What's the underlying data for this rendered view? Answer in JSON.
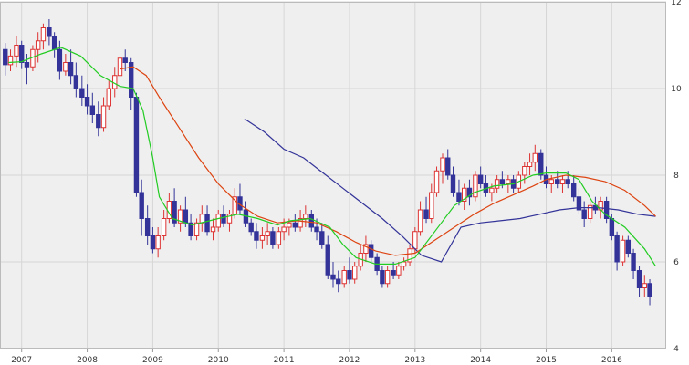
{
  "chart_data": {
    "type": "candlestick",
    "xlabel": "",
    "ylabel": "",
    "x_range": [
      2006.67,
      2016.83
    ],
    "ylim": [
      4,
      12
    ],
    "x_ticks": [
      {
        "label": "2007",
        "x": 2007.0
      },
      {
        "label": "2008",
        "x": 2008.0
      },
      {
        "label": "2009",
        "x": 2009.0
      },
      {
        "label": "2010",
        "x": 2010.0
      },
      {
        "label": "2011",
        "x": 2011.0
      },
      {
        "label": "2012",
        "x": 2012.0
      },
      {
        "label": "2013",
        "x": 2013.0
      },
      {
        "label": "2014",
        "x": 2014.0
      },
      {
        "label": "2015",
        "x": 2015.0
      },
      {
        "label": "2016",
        "x": 2016.0
      }
    ],
    "y_ticks": [
      4,
      6,
      8,
      10,
      12
    ],
    "grid": true,
    "colors": {
      "up_candle": "#dd3333",
      "down_candle": "#333399",
      "ma_short": "#22cc22",
      "ma_medium": "#dd4411",
      "ma_long": "#333399",
      "plot_bg": "#efefef",
      "grid": "#d6d6d6"
    },
    "ma_short": [
      [
        2006.8,
        10.6
      ],
      [
        2007.0,
        10.62
      ],
      [
        2007.3,
        10.8
      ],
      [
        2007.6,
        10.95
      ],
      [
        2007.9,
        10.75
      ],
      [
        2008.2,
        10.3
      ],
      [
        2008.5,
        10.05
      ],
      [
        2008.7,
        10.0
      ],
      [
        2008.85,
        9.5
      ],
      [
        2009.0,
        8.4
      ],
      [
        2009.1,
        7.5
      ],
      [
        2009.3,
        7.0
      ],
      [
        2009.6,
        6.85
      ],
      [
        2010.0,
        7.0
      ],
      [
        2010.3,
        7.1
      ],
      [
        2010.6,
        7.0
      ],
      [
        2010.9,
        6.85
      ],
      [
        2011.1,
        6.95
      ],
      [
        2011.4,
        7.0
      ],
      [
        2011.7,
        6.8
      ],
      [
        2011.9,
        6.4
      ],
      [
        2012.1,
        6.1
      ],
      [
        2012.4,
        5.95
      ],
      [
        2012.7,
        5.95
      ],
      [
        2013.0,
        6.1
      ],
      [
        2013.3,
        6.7
      ],
      [
        2013.6,
        7.3
      ],
      [
        2013.9,
        7.6
      ],
      [
        2014.2,
        7.75
      ],
      [
        2014.5,
        7.8
      ],
      [
        2014.8,
        8.0
      ],
      [
        2015.0,
        8.05
      ],
      [
        2015.3,
        8.05
      ],
      [
        2015.5,
        7.9
      ],
      [
        2015.7,
        7.4
      ],
      [
        2015.9,
        7.1
      ],
      [
        2016.2,
        6.8
      ],
      [
        2016.5,
        6.3
      ],
      [
        2016.67,
        5.9
      ]
    ],
    "ma_medium": [
      [
        2008.5,
        10.45
      ],
      [
        2008.7,
        10.5
      ],
      [
        2008.9,
        10.3
      ],
      [
        2009.1,
        9.8
      ],
      [
        2009.4,
        9.1
      ],
      [
        2009.7,
        8.4
      ],
      [
        2010.0,
        7.8
      ],
      [
        2010.3,
        7.35
      ],
      [
        2010.6,
        7.05
      ],
      [
        2010.9,
        6.9
      ],
      [
        2011.2,
        6.95
      ],
      [
        2011.5,
        6.9
      ],
      [
        2011.8,
        6.7
      ],
      [
        2012.1,
        6.45
      ],
      [
        2012.4,
        6.25
      ],
      [
        2012.7,
        6.15
      ],
      [
        2013.0,
        6.2
      ],
      [
        2013.3,
        6.5
      ],
      [
        2013.6,
        6.8
      ],
      [
        2013.9,
        7.1
      ],
      [
        2014.2,
        7.35
      ],
      [
        2014.5,
        7.55
      ],
      [
        2014.8,
        7.75
      ],
      [
        2015.0,
        7.9
      ],
      [
        2015.3,
        8.0
      ],
      [
        2015.6,
        7.95
      ],
      [
        2015.9,
        7.85
      ],
      [
        2016.2,
        7.65
      ],
      [
        2016.5,
        7.3
      ],
      [
        2016.67,
        7.05
      ]
    ],
    "ma_long": [
      [
        2010.4,
        9.3
      ],
      [
        2010.7,
        9.0
      ],
      [
        2011.0,
        8.6
      ],
      [
        2011.3,
        8.4
      ],
      [
        2011.6,
        8.05
      ],
      [
        2011.9,
        7.7
      ],
      [
        2012.2,
        7.35
      ],
      [
        2012.5,
        7.0
      ],
      [
        2012.8,
        6.6
      ],
      [
        2013.1,
        6.15
      ],
      [
        2013.4,
        6.0
      ],
      [
        2013.7,
        6.8
      ],
      [
        2014.0,
        6.9
      ],
      [
        2014.3,
        6.95
      ],
      [
        2014.6,
        7.0
      ],
      [
        2014.9,
        7.1
      ],
      [
        2015.2,
        7.2
      ],
      [
        2015.5,
        7.25
      ],
      [
        2015.8,
        7.25
      ],
      [
        2016.1,
        7.2
      ],
      [
        2016.4,
        7.1
      ],
      [
        2016.67,
        7.05
      ]
    ],
    "candles": [
      [
        2006.75,
        10.9,
        11.05,
        10.3,
        10.55
      ],
      [
        2006.83,
        10.55,
        10.9,
        10.4,
        10.75
      ],
      [
        2006.92,
        10.75,
        11.2,
        10.5,
        11.0
      ],
      [
        2007.0,
        11.0,
        11.1,
        10.45,
        10.6
      ],
      [
        2007.08,
        10.6,
        10.8,
        10.1,
        10.5
      ],
      [
        2007.17,
        10.5,
        11.0,
        10.4,
        10.9
      ],
      [
        2007.25,
        10.9,
        11.3,
        10.6,
        11.1
      ],
      [
        2007.33,
        11.1,
        11.5,
        10.9,
        11.4
      ],
      [
        2007.42,
        11.4,
        11.6,
        11.0,
        11.2
      ],
      [
        2007.5,
        11.2,
        11.3,
        10.7,
        10.9
      ],
      [
        2007.58,
        10.9,
        11.1,
        10.2,
        10.4
      ],
      [
        2007.67,
        10.4,
        10.8,
        10.3,
        10.6
      ],
      [
        2007.75,
        10.6,
        10.9,
        10.1,
        10.3
      ],
      [
        2007.83,
        10.3,
        10.6,
        9.8,
        10.0
      ],
      [
        2007.92,
        10.0,
        10.3,
        9.6,
        9.8
      ],
      [
        2008.0,
        9.8,
        10.1,
        9.4,
        9.6
      ],
      [
        2008.08,
        9.6,
        9.9,
        9.2,
        9.4
      ],
      [
        2008.17,
        9.4,
        9.7,
        8.9,
        9.1
      ],
      [
        2008.25,
        9.1,
        9.8,
        9.0,
        9.6
      ],
      [
        2008.33,
        9.6,
        10.2,
        9.5,
        10.0
      ],
      [
        2008.42,
        10.0,
        10.5,
        9.8,
        10.3
      ],
      [
        2008.5,
        10.3,
        10.8,
        10.2,
        10.7
      ],
      [
        2008.58,
        10.7,
        10.9,
        10.4,
        10.6
      ],
      [
        2008.67,
        10.6,
        10.7,
        9.5,
        9.8
      ],
      [
        2008.75,
        9.8,
        9.9,
        7.5,
        7.6
      ],
      [
        2008.83,
        7.6,
        7.9,
        6.6,
        7.0
      ],
      [
        2008.92,
        7.0,
        7.3,
        6.4,
        6.6
      ],
      [
        2009.0,
        6.6,
        6.8,
        6.2,
        6.3
      ],
      [
        2009.08,
        6.3,
        6.8,
        6.1,
        6.6
      ],
      [
        2009.17,
        6.6,
        7.2,
        6.5,
        7.0
      ],
      [
        2009.25,
        7.0,
        7.6,
        6.9,
        7.4
      ],
      [
        2009.33,
        7.4,
        7.7,
        6.8,
        6.9
      ],
      [
        2009.42,
        6.9,
        7.3,
        6.7,
        7.2
      ],
      [
        2009.5,
        7.2,
        7.5,
        6.8,
        6.9
      ],
      [
        2009.58,
        6.9,
        7.1,
        6.5,
        6.6
      ],
      [
        2009.67,
        6.6,
        7.0,
        6.5,
        6.9
      ],
      [
        2009.75,
        6.9,
        7.3,
        6.7,
        7.1
      ],
      [
        2009.83,
        7.1,
        7.3,
        6.6,
        6.7
      ],
      [
        2009.92,
        6.7,
        7.0,
        6.5,
        6.8
      ],
      [
        2010.0,
        6.8,
        7.2,
        6.7,
        7.1
      ],
      [
        2010.08,
        7.1,
        7.3,
        6.8,
        6.9
      ],
      [
        2010.17,
        6.9,
        7.2,
        6.7,
        7.1
      ],
      [
        2010.25,
        7.1,
        7.7,
        7.0,
        7.5
      ],
      [
        2010.33,
        7.5,
        7.8,
        7.1,
        7.2
      ],
      [
        2010.42,
        7.2,
        7.4,
        6.8,
        6.9
      ],
      [
        2010.5,
        6.9,
        7.0,
        6.6,
        6.7
      ],
      [
        2010.58,
        6.7,
        6.9,
        6.3,
        6.5
      ],
      [
        2010.67,
        6.5,
        6.8,
        6.3,
        6.6
      ],
      [
        2010.75,
        6.6,
        6.9,
        6.4,
        6.7
      ],
      [
        2010.83,
        6.7,
        6.8,
        6.3,
        6.4
      ],
      [
        2010.92,
        6.4,
        6.8,
        6.3,
        6.7
      ],
      [
        2011.0,
        6.7,
        7.0,
        6.5,
        6.8
      ],
      [
        2011.08,
        6.8,
        7.0,
        6.6,
        6.9
      ],
      [
        2011.17,
        6.9,
        7.1,
        6.7,
        6.8
      ],
      [
        2011.25,
        6.8,
        7.2,
        6.7,
        7.0
      ],
      [
        2011.33,
        7.0,
        7.3,
        6.8,
        7.1
      ],
      [
        2011.42,
        7.1,
        7.2,
        6.7,
        6.8
      ],
      [
        2011.5,
        6.8,
        7.0,
        6.5,
        6.7
      ],
      [
        2011.58,
        6.7,
        6.9,
        6.3,
        6.4
      ],
      [
        2011.67,
        6.4,
        6.6,
        5.6,
        5.7
      ],
      [
        2011.75,
        5.7,
        6.0,
        5.4,
        5.6
      ],
      [
        2011.83,
        5.6,
        5.8,
        5.3,
        5.5
      ],
      [
        2011.92,
        5.5,
        5.9,
        5.4,
        5.8
      ],
      [
        2012.0,
        5.8,
        6.1,
        5.5,
        5.6
      ],
      [
        2012.08,
        5.6,
        6.0,
        5.5,
        5.9
      ],
      [
        2012.17,
        5.9,
        6.4,
        5.8,
        6.2
      ],
      [
        2012.25,
        6.2,
        6.6,
        6.0,
        6.4
      ],
      [
        2012.33,
        6.4,
        6.5,
        6.0,
        6.1
      ],
      [
        2012.42,
        6.1,
        6.2,
        5.7,
        5.8
      ],
      [
        2012.5,
        5.8,
        5.9,
        5.4,
        5.5
      ],
      [
        2012.58,
        5.5,
        5.9,
        5.4,
        5.8
      ],
      [
        2012.67,
        5.8,
        6.0,
        5.6,
        5.7
      ],
      [
        2012.75,
        5.7,
        6.0,
        5.6,
        5.9
      ],
      [
        2012.83,
        5.9,
        6.1,
        5.8,
        6.0
      ],
      [
        2012.92,
        6.0,
        6.4,
        5.9,
        6.3
      ],
      [
        2013.0,
        6.3,
        6.8,
        6.2,
        6.7
      ],
      [
        2013.08,
        6.7,
        7.4,
        6.6,
        7.2
      ],
      [
        2013.17,
        7.2,
        7.5,
        6.9,
        7.0
      ],
      [
        2013.25,
        7.0,
        7.8,
        6.9,
        7.6
      ],
      [
        2013.33,
        7.6,
        8.2,
        7.5,
        8.1
      ],
      [
        2013.42,
        8.1,
        8.5,
        7.8,
        8.4
      ],
      [
        2013.5,
        8.4,
        8.6,
        7.9,
        8.0
      ],
      [
        2013.58,
        8.0,
        8.2,
        7.5,
        7.6
      ],
      [
        2013.67,
        7.6,
        7.9,
        7.3,
        7.4
      ],
      [
        2013.75,
        7.4,
        7.8,
        7.2,
        7.7
      ],
      [
        2013.83,
        7.7,
        7.9,
        7.3,
        7.5
      ],
      [
        2013.92,
        7.5,
        8.1,
        7.4,
        8.0
      ],
      [
        2014.0,
        8.0,
        8.2,
        7.7,
        7.8
      ],
      [
        2014.08,
        7.8,
        8.0,
        7.5,
        7.6
      ],
      [
        2014.17,
        7.6,
        7.8,
        7.4,
        7.7
      ],
      [
        2014.25,
        7.7,
        8.0,
        7.6,
        7.9
      ],
      [
        2014.33,
        7.9,
        8.1,
        7.7,
        7.8
      ],
      [
        2014.42,
        7.8,
        8.0,
        7.6,
        7.9
      ],
      [
        2014.5,
        7.9,
        8.0,
        7.6,
        7.7
      ],
      [
        2014.58,
        7.7,
        8.1,
        7.6,
        8.0
      ],
      [
        2014.67,
        8.0,
        8.3,
        7.8,
        8.2
      ],
      [
        2014.75,
        8.2,
        8.5,
        8.0,
        8.3
      ],
      [
        2014.83,
        8.3,
        8.7,
        8.1,
        8.5
      ],
      [
        2014.92,
        8.5,
        8.6,
        7.9,
        8.0
      ],
      [
        2015.0,
        8.0,
        8.2,
        7.7,
        7.8
      ],
      [
        2015.08,
        7.8,
        8.0,
        7.6,
        7.9
      ],
      [
        2015.17,
        7.9,
        8.1,
        7.7,
        7.8
      ],
      [
        2015.25,
        7.8,
        8.0,
        7.6,
        7.9
      ],
      [
        2015.33,
        7.9,
        8.1,
        7.7,
        7.8
      ],
      [
        2015.42,
        7.8,
        8.0,
        7.4,
        7.5
      ],
      [
        2015.5,
        7.5,
        7.7,
        7.1,
        7.2
      ],
      [
        2015.58,
        7.2,
        7.4,
        6.8,
        7.0
      ],
      [
        2015.67,
        7.0,
        7.4,
        6.9,
        7.3
      ],
      [
        2015.75,
        7.3,
        7.5,
        7.1,
        7.2
      ],
      [
        2015.83,
        7.2,
        7.5,
        7.0,
        7.4
      ],
      [
        2015.92,
        7.4,
        7.5,
        6.9,
        7.0
      ],
      [
        2016.0,
        7.0,
        7.1,
        6.5,
        6.6
      ],
      [
        2016.08,
        6.6,
        6.7,
        5.8,
        6.0
      ],
      [
        2016.17,
        6.0,
        6.6,
        5.9,
        6.5
      ],
      [
        2016.25,
        6.5,
        6.6,
        6.1,
        6.2
      ],
      [
        2016.33,
        6.2,
        6.3,
        5.6,
        5.8
      ],
      [
        2016.42,
        5.8,
        5.9,
        5.2,
        5.4
      ],
      [
        2016.5,
        5.4,
        5.7,
        5.2,
        5.5
      ],
      [
        2016.58,
        5.5,
        5.6,
        5.0,
        5.2
      ]
    ]
  }
}
